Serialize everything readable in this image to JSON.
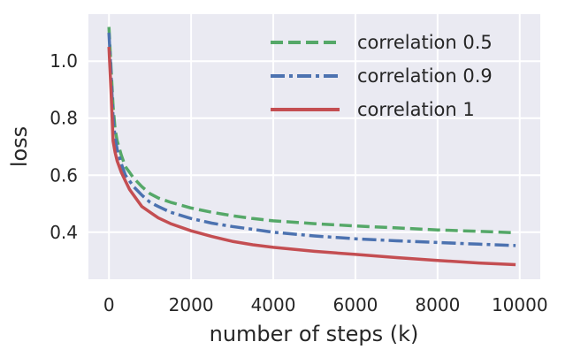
{
  "chart_data": {
    "type": "line",
    "xlabel": "number of steps (k)",
    "ylabel": "loss",
    "xlim": [
      -500,
      10500
    ],
    "ylim": [
      0.235,
      1.165
    ],
    "x_ticks": [
      0,
      2000,
      4000,
      6000,
      8000,
      10000
    ],
    "x_tick_labels": [
      "0",
      "2000",
      "4000",
      "6000",
      "8000",
      "10000"
    ],
    "y_ticks": [
      0.4,
      0.6,
      0.8,
      1.0
    ],
    "y_tick_labels": [
      "0.4",
      "0.6",
      "0.8",
      "1.0"
    ],
    "grid": true,
    "background": "#eaeaf2",
    "legend_position": "top-right",
    "series": [
      {
        "name": "correlation 0.5",
        "color": "#55a868",
        "dash": "dashed",
        "x": [
          0,
          50,
          100,
          150,
          200,
          300,
          400,
          500,
          600,
          800,
          1000,
          1200,
          1500,
          2000,
          2500,
          3000,
          3500,
          4000,
          5000,
          6000,
          7000,
          8000,
          9000,
          9900
        ],
        "y": [
          1.12,
          0.98,
          0.84,
          0.76,
          0.72,
          0.67,
          0.63,
          0.61,
          0.59,
          0.56,
          0.535,
          0.52,
          0.505,
          0.485,
          0.47,
          0.458,
          0.448,
          0.44,
          0.43,
          0.422,
          0.415,
          0.408,
          0.403,
          0.398
        ]
      },
      {
        "name": "correlation 0.9",
        "color": "#4c72b0",
        "dash": "dashdot",
        "x": [
          0,
          50,
          100,
          150,
          200,
          300,
          400,
          500,
          600,
          800,
          1000,
          1200,
          1500,
          2000,
          2500,
          3000,
          3500,
          4000,
          5000,
          6000,
          7000,
          8000,
          9000,
          9900
        ],
        "y": [
          1.1,
          0.96,
          0.8,
          0.73,
          0.69,
          0.64,
          0.6,
          0.58,
          0.56,
          0.53,
          0.505,
          0.49,
          0.47,
          0.448,
          0.432,
          0.42,
          0.41,
          0.4,
          0.387,
          0.377,
          0.37,
          0.364,
          0.358,
          0.353
        ]
      },
      {
        "name": "correlation 1",
        "color": "#c44e52",
        "dash": "solid",
        "x": [
          0,
          50,
          100,
          150,
          200,
          300,
          400,
          500,
          600,
          800,
          1000,
          1200,
          1500,
          2000,
          2500,
          3000,
          3500,
          4000,
          5000,
          6000,
          7000,
          8000,
          9000,
          9900
        ],
        "y": [
          1.05,
          0.9,
          0.72,
          0.68,
          0.65,
          0.61,
          0.58,
          0.55,
          0.53,
          0.49,
          0.47,
          0.45,
          0.43,
          0.405,
          0.385,
          0.368,
          0.356,
          0.347,
          0.333,
          0.322,
          0.311,
          0.301,
          0.292,
          0.286
        ]
      }
    ]
  }
}
